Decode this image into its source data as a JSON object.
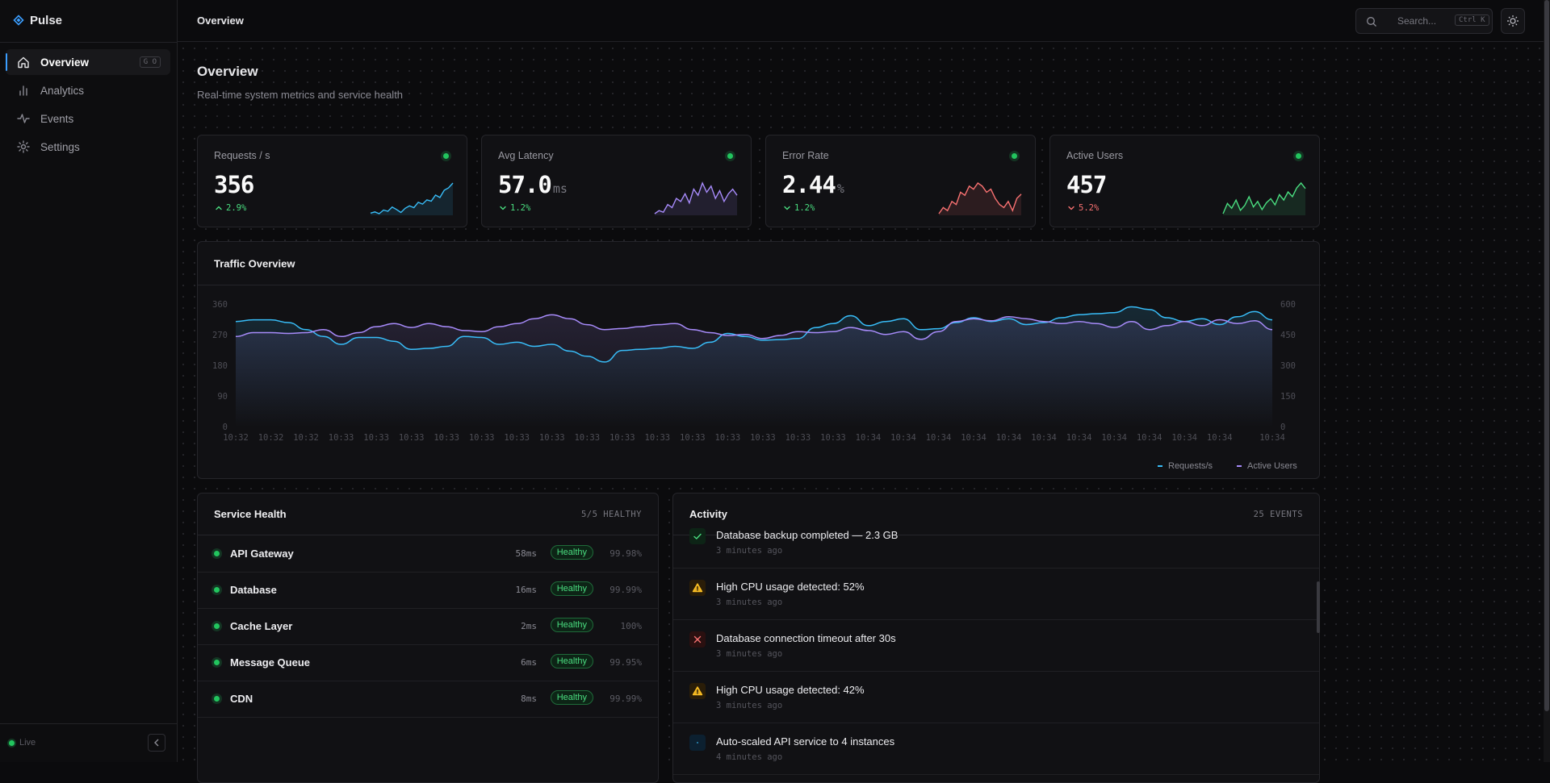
{
  "sidebar": {
    "brand": "Pulse",
    "nav": [
      {
        "label": "Overview",
        "shortcut": "G O",
        "active": true
      },
      {
        "label": "Analytics"
      },
      {
        "label": "Events"
      },
      {
        "label": "Settings"
      }
    ],
    "status": "Live"
  },
  "header": {
    "title": "Overview",
    "search": "Search...",
    "shortcut": "Ctrl K"
  },
  "page": {
    "title": "Overview",
    "subtitle": "Real-time system metrics and service health"
  },
  "kpis": [
    {
      "label": "Requests / s",
      "value": "356",
      "change": "2.9%",
      "direction": "up",
      "tone": "good",
      "color": "#38bdf8",
      "spark": [
        300,
        302,
        299,
        305,
        303,
        310,
        306,
        301,
        308,
        312,
        309,
        318,
        315,
        322,
        320,
        330,
        326,
        338,
        342,
        350
      ]
    },
    {
      "label": "Avg Latency",
      "value": "57.0",
      "unit": "ms",
      "change": "1.2%",
      "direction": "down",
      "tone": "good",
      "color": "#a78bfa",
      "spark": [
        42,
        44,
        43,
        48,
        46,
        52,
        50,
        55,
        49,
        58,
        54,
        62,
        56,
        60,
        52,
        57,
        50,
        55,
        58,
        54
      ]
    },
    {
      "label": "Error Rate",
      "value": "2.44",
      "unit": "%",
      "change": "1.2%",
      "direction": "down",
      "tone": "good",
      "color": "#f87171",
      "spark": [
        1.8,
        2.0,
        1.9,
        2.2,
        2.1,
        2.5,
        2.4,
        2.7,
        2.6,
        2.8,
        2.7,
        2.5,
        2.6,
        2.3,
        2.1,
        2.0,
        2.2,
        1.9,
        2.3,
        2.44
      ]
    },
    {
      "label": "Active Users",
      "value": "457",
      "change": "5.2%",
      "direction": "down",
      "tone": "bad",
      "color": "#4ade80",
      "spark": [
        420,
        435,
        428,
        440,
        425,
        432,
        445,
        430,
        438,
        426,
        436,
        442,
        433,
        448,
        440,
        452,
        445,
        458,
        465,
        457
      ]
    }
  ],
  "chart_data": {
    "type": "line",
    "title": "Traffic Overview",
    "categories": [
      "10:32",
      null,
      "10:32",
      null,
      "10:32",
      null,
      "10:33",
      null,
      "10:33",
      null,
      "10:33",
      null,
      "10:33",
      null,
      "10:33",
      null,
      "10:33",
      null,
      "10:33",
      null,
      "10:33",
      null,
      "10:33",
      null,
      "10:33",
      null,
      "10:33",
      null,
      "10:33",
      null,
      "10:33",
      null,
      "10:33",
      null,
      "10:33",
      null,
      "10:34",
      null,
      "10:34",
      null,
      "10:34",
      null,
      "10:34",
      null,
      "10:34",
      null,
      "10:34",
      null,
      "10:34",
      null,
      "10:34",
      null,
      "10:34",
      null,
      "10:34",
      null,
      "10:34",
      null,
      null,
      "10:34"
    ],
    "series": [
      {
        "name": "Requests/s",
        "color": "#38bdf8",
        "values": [
          311,
          316,
          316,
          308,
          287,
          267,
          244,
          264,
          264,
          253,
          229,
          232,
          238,
          267,
          264,
          244,
          250,
          238,
          244,
          224,
          209,
          192,
          226,
          229,
          232,
          238,
          232,
          250,
          276,
          267,
          256,
          258,
          261,
          293,
          305,
          328,
          299,
          311,
          319,
          287,
          290,
          308,
          322,
          311,
          319,
          302,
          308,
          322,
          331,
          334,
          337,
          354,
          346,
          322,
          311,
          319,
          302,
          325,
          340,
          316
        ]
      },
      {
        "name": "Active Users",
        "color": "#a78bfa",
        "axis": "y2",
        "values": [
          445,
          464,
          464,
          460,
          464,
          479,
          445,
          464,
          493,
          508,
          489,
          508,
          493,
          474,
          469,
          493,
          508,
          532,
          551,
          532,
          503,
          479,
          484,
          493,
          503,
          508,
          479,
          464,
          450,
          455,
          435,
          450,
          469,
          464,
          469,
          489,
          474,
          455,
          469,
          431,
          469,
          518,
          532,
          522,
          542,
          532,
          518,
          508,
          518,
          508,
          489,
          518,
          479,
          498,
          518,
          498,
          527,
          508,
          522,
          479
        ]
      }
    ],
    "ylim": [
      0,
      360
    ],
    "yticks": [
      0,
      90,
      180,
      270,
      360
    ],
    "y2lim": [
      0,
      600
    ],
    "y2ticks": [
      0,
      150,
      300,
      450,
      600
    ],
    "legend": "bottom-right"
  },
  "services": {
    "title": "Service Health",
    "summary": "5/5 HEALTHY",
    "rows": [
      {
        "name": "API Gateway",
        "latency": "58ms",
        "status": "Healthy",
        "uptime": "99.98%"
      },
      {
        "name": "Database",
        "latency": "16ms",
        "status": "Healthy",
        "uptime": "99.99%"
      },
      {
        "name": "Cache Layer",
        "latency": "2ms",
        "status": "Healthy",
        "uptime": "100%"
      },
      {
        "name": "Message Queue",
        "latency": "6ms",
        "status": "Healthy",
        "uptime": "99.95%"
      },
      {
        "name": "CDN",
        "latency": "8ms",
        "status": "Healthy",
        "uptime": "99.99%"
      }
    ]
  },
  "activity": {
    "title": "Activity",
    "summary": "25 EVENTS",
    "items": [
      {
        "level": "success",
        "text": "Database backup completed — 2.3 GB",
        "time": "3 minutes ago"
      },
      {
        "level": "warning",
        "text": "High CPU usage detected: 52%",
        "time": "3 minutes ago"
      },
      {
        "level": "error",
        "text": "Database connection timeout after 30s",
        "time": "3 minutes ago"
      },
      {
        "level": "warning",
        "text": "High CPU usage detected: 42%",
        "time": "3 minutes ago"
      },
      {
        "level": "info",
        "text": "Auto-scaled API service to 4 instances",
        "time": "4 minutes ago"
      }
    ]
  }
}
